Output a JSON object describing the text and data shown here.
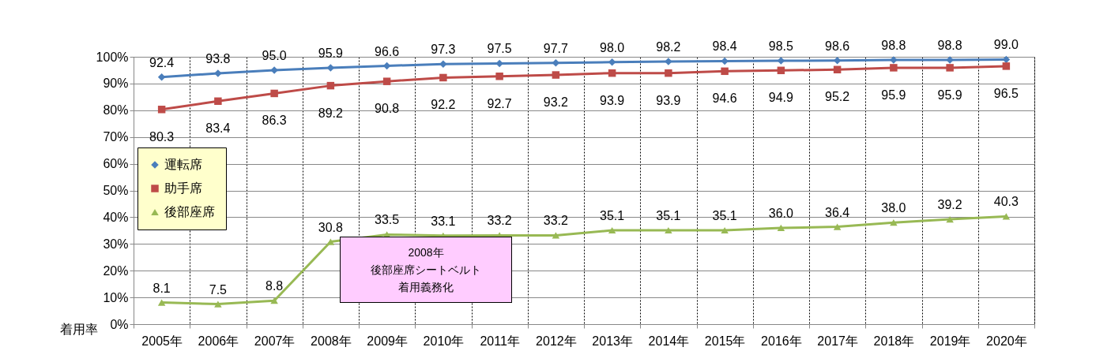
{
  "chart_data": {
    "type": "line",
    "ylabel": "着用率",
    "categories": [
      "2005年",
      "2006年",
      "2007年",
      "2008年",
      "2009年",
      "2010年",
      "2011年",
      "2012年",
      "2013年",
      "2014年",
      "2015年",
      "2016年",
      "2017年",
      "2018年",
      "2019年",
      "2020年"
    ],
    "series": [
      {
        "name": "運転席",
        "color": "#4a7ebb",
        "marker": "diamond",
        "values": [
          92.4,
          93.8,
          95.0,
          95.9,
          96.6,
          97.3,
          97.5,
          97.7,
          98.0,
          98.2,
          98.4,
          98.5,
          98.6,
          98.8,
          98.8,
          99.0
        ],
        "value_labels": [
          "92.4",
          "93.8",
          "95.0",
          "95.9",
          "96.6",
          "97.3",
          "97.5",
          "97.7",
          "98.0",
          "98.2",
          "98.4",
          "98.5",
          "98.6",
          "98.8",
          "98.8",
          "99.0"
        ]
      },
      {
        "name": "助手席",
        "color": "#be4b48",
        "marker": "square",
        "values": [
          80.3,
          83.4,
          86.3,
          89.2,
          90.8,
          92.2,
          92.7,
          93.2,
          93.9,
          93.9,
          94.6,
          94.9,
          95.2,
          95.9,
          95.9,
          96.5
        ],
        "value_labels": [
          "80.3",
          "83.4",
          "86.3",
          "89.2",
          "90.8",
          "92.2",
          "92.7",
          "93.2",
          "93.9",
          "93.9",
          "94.6",
          "94.9",
          "95.2",
          "95.9",
          "95.9",
          "96.5"
        ]
      },
      {
        "name": "後部座席",
        "color": "#98b954",
        "marker": "triangle",
        "values": [
          8.1,
          7.5,
          8.8,
          30.8,
          33.5,
          33.1,
          33.2,
          33.2,
          35.1,
          35.1,
          35.1,
          36.0,
          36.4,
          38.0,
          39.2,
          40.3
        ],
        "value_labels": [
          "8.1",
          "7.5",
          "8.8",
          "30.8",
          "33.5",
          "33.1",
          "33.2",
          "33.2",
          "35.1",
          "35.1",
          "35.1",
          "36.0",
          "36.4",
          "38.0",
          "39.2",
          "40.3"
        ]
      }
    ],
    "ylim": [
      0,
      100
    ],
    "yticks": [
      {
        "value": 0,
        "label": "0%"
      },
      {
        "value": 10,
        "label": "10%"
      },
      {
        "value": 20,
        "label": "20%"
      },
      {
        "value": 30,
        "label": "30%"
      },
      {
        "value": 40,
        "label": "40%"
      },
      {
        "value": 50,
        "label": "50%"
      },
      {
        "value": 60,
        "label": "60%"
      },
      {
        "value": 70,
        "label": "70%"
      },
      {
        "value": 80,
        "label": "80%"
      },
      {
        "value": 90,
        "label": "90%"
      },
      {
        "value": 100,
        "label": "100%"
      }
    ],
    "grid": true,
    "legend": "top left",
    "line_style": "solid",
    "data_labels": true,
    "annotations": [
      "2008年",
      "後部座席シートベルト",
      "着用義務化"
    ]
  }
}
